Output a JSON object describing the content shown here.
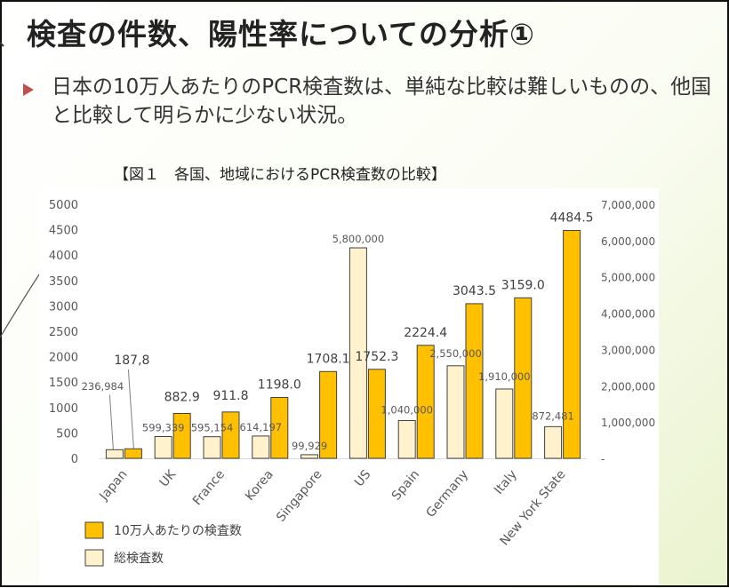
{
  "slide": {
    "title": "検査の件数、陽性率についての分析①",
    "bullet_text": "日本の10万人あたりのPCR検査数は、単純な比較は難しいものの、他国と比較して明らかに少ない状況。",
    "figure_caption": "【図１　各国、地域におけるPCR検査数の比較】"
  },
  "colors": {
    "per100k": "#ffc000",
    "total": "#fff2cc",
    "bullet": "#c0504d"
  },
  "chart_data": {
    "type": "bar",
    "categories": [
      "Japan",
      "UK",
      "France",
      "Korea",
      "Singapore",
      "US",
      "Spain",
      "Germany",
      "Italy",
      "New York State"
    ],
    "series": [
      {
        "name": "総検査数",
        "axis": "right",
        "values": [
          236984,
          599339,
          595154,
          614197,
          99929,
          5800000,
          1040000,
          2550000,
          1910000,
          872481
        ],
        "labels": [
          "236,984",
          "599,339",
          "595,154",
          "614,197",
          "99,929",
          "5,800,000",
          "1,040,000",
          "2,550,000",
          "1,910,000",
          "872,481"
        ]
      },
      {
        "name": "10万人あたりの検査数",
        "axis": "left",
        "values": [
          187.8,
          882.9,
          911.8,
          1198.0,
          1708.1,
          1752.3,
          2224.4,
          3043.5,
          3159.0,
          4484.5
        ],
        "labels": [
          "187,8",
          "882.9",
          "911.8",
          "1198.0",
          "1708.1",
          "1752.3",
          "2224.4",
          "3043.5",
          "3159.0",
          "4484.5"
        ]
      }
    ],
    "y_left": {
      "range": [
        0,
        5000
      ],
      "ticks": [
        "0",
        "500",
        "1000",
        "1500",
        "2000",
        "2500",
        "3000",
        "3500",
        "4000",
        "4500",
        "5000"
      ]
    },
    "y_right": {
      "range": [
        0,
        7000000
      ],
      "ticks": [
        "-",
        "1,000,000",
        "2,000,000",
        "3,000,000",
        "4,000,000",
        "5,000,000",
        "6,000,000",
        "7,000,000"
      ]
    },
    "legend": {
      "position": "bottom-left",
      "items": [
        {
          "label": "10万人あたりの検査数",
          "series": "per100k"
        },
        {
          "label": "総検査数",
          "series": "total"
        }
      ]
    },
    "grid": false
  }
}
